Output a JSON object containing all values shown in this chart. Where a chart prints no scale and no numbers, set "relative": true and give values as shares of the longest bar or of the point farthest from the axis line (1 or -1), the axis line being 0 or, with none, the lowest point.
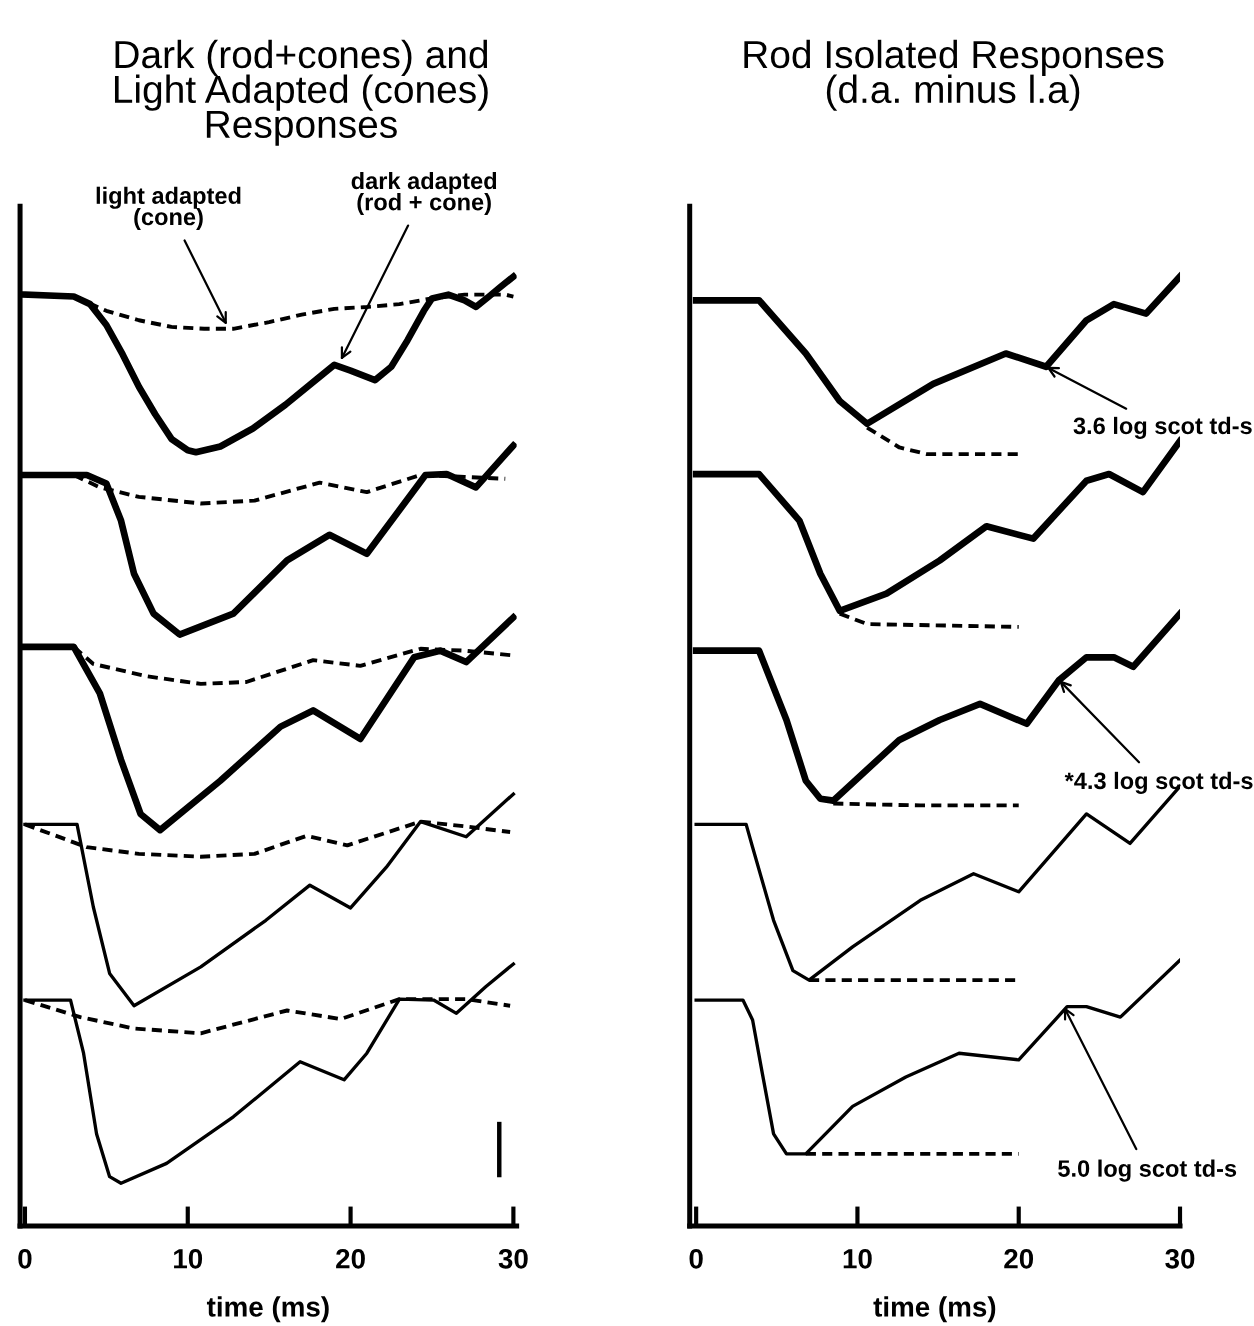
{
  "chart_data": [
    {
      "type": "line",
      "title": "Dark (rod+cones) and\nLight Adapted (cones)\nResponses",
      "xlabel": "time (ms)",
      "relative": true,
      "xlim": [
        -0.3,
        30.2
      ],
      "xticks": [
        0,
        10,
        20,
        30
      ],
      "grid": false,
      "legend": false,
      "marker": "none",
      "annotations": [
        {
          "text": "light adapted\n(cone)",
          "x": 12.4,
          "y": 0.949
        },
        {
          "text": "dark adapted\n(rod + cone)",
          "x": 19.4,
          "y": 0.912
        }
      ],
      "series": [
        {
          "color": "#000000",
          "line_style": "solid",
          "x": [
            0,
            3,
            4,
            5,
            6,
            7,
            8,
            9,
            10,
            10.5,
            12,
            14,
            16,
            18,
            19,
            20,
            21.5,
            22.5,
            23.5,
            24.5,
            25,
            26,
            27,
            27.7,
            28.5,
            29.2,
            30
          ],
          "values": [
            0.981,
            0.979,
            0.971,
            0.949,
            0.918,
            0.884,
            0.855,
            0.829,
            0.817,
            0.815,
            0.821,
            0.84,
            0.865,
            0.893,
            0.907,
            0.901,
            0.891,
            0.905,
            0.933,
            0.964,
            0.977,
            0.981,
            0.975,
            0.968,
            0.979,
            0.989,
            1
          ]
        },
        {
          "color": "#000000",
          "line_style": "dashed",
          "x": [
            0,
            3,
            5,
            7,
            9,
            11,
            12.8,
            15,
            17,
            19,
            21,
            23,
            25,
            27,
            29.5,
            30
          ],
          "values": [
            0.981,
            0.979,
            0.964,
            0.954,
            0.947,
            0.945,
            0.945,
            0.952,
            0.96,
            0.966,
            0.968,
            0.971,
            0.977,
            0.981,
            0.981,
            0.979
          ]
        },
        {
          "color": "#000000",
          "line_style": "solid",
          "x": [
            0,
            3.8,
            5,
            5.9,
            6.7,
            7.9,
            9.5,
            12.8,
            16.1,
            18.7,
            21,
            24.6,
            25.9,
            27.7,
            30
          ],
          "values": [
            0.791,
            0.791,
            0.782,
            0.743,
            0.687,
            0.645,
            0.623,
            0.645,
            0.701,
            0.728,
            0.708,
            0.791,
            0.792,
            0.778,
            0.822
          ]
        },
        {
          "color": "#000000",
          "line_style": "dashed",
          "x": [
            0,
            3,
            4.6,
            7,
            10.8,
            14.1,
            18.1,
            21,
            24.3,
            27,
            29.5
          ],
          "values": [
            0.791,
            0.791,
            0.778,
            0.768,
            0.761,
            0.764,
            0.783,
            0.773,
            0.791,
            0.789,
            0.787
          ]
        },
        {
          "color": "#000000",
          "line_style": "solid",
          "x": [
            0,
            3,
            4.6,
            5.9,
            7.1,
            8.3,
            12,
            15.7,
            17.7,
            20.6,
            23.9,
            25.5,
            27.1,
            30
          ],
          "values": [
            0.61,
            0.61,
            0.561,
            0.491,
            0.434,
            0.417,
            0.469,
            0.526,
            0.543,
            0.513,
            0.599,
            0.606,
            0.594,
            0.641
          ]
        },
        {
          "color": "#000000",
          "line_style": "dashed",
          "x": [
            0,
            3,
            4.2,
            7.5,
            10.8,
            13.6,
            17.7,
            20.6,
            24.3,
            27,
            30
          ],
          "values": [
            0.61,
            0.61,
            0.592,
            0.579,
            0.571,
            0.573,
            0.596,
            0.59,
            0.608,
            0.606,
            0.601
          ]
        },
        {
          "color": "#000000",
          "line_style": "solid",
          "x": [
            0,
            3.2,
            4.2,
            5.2,
            6.7,
            10.8,
            14.8,
            17.5,
            20,
            22.2,
            24.3,
            27.1,
            30
          ],
          "values": [
            0.423,
            0.423,
            0.336,
            0.266,
            0.232,
            0.273,
            0.322,
            0.359,
            0.335,
            0.378,
            0.426,
            0.41,
            0.455
          ]
        },
        {
          "color": "#000000",
          "line_style": "dashed",
          "x": [
            0,
            3.8,
            7,
            10.8,
            14.1,
            17.3,
            19.8,
            24.3,
            27,
            29.8
          ],
          "values": [
            0.423,
            0.399,
            0.392,
            0.389,
            0.392,
            0.411,
            0.401,
            0.426,
            0.421,
            0.415
          ]
        },
        {
          "color": "#000000",
          "line_style": "solid",
          "x": [
            0,
            2.8,
            3.6,
            4.4,
            5.2,
            5.9,
            8.7,
            12.8,
            16.9,
            19.6,
            21,
            23,
            25.1,
            26.5,
            28.3,
            30
          ],
          "values": [
            0.238,
            0.238,
            0.182,
            0.097,
            0.052,
            0.045,
            0.066,
            0.115,
            0.173,
            0.154,
            0.182,
            0.239,
            0.238,
            0.224,
            0.252,
            0.276
          ]
        },
        {
          "color": "#000000",
          "line_style": "dashed",
          "x": [
            0,
            3.4,
            6.7,
            10.8,
            16.1,
            19.4,
            23,
            27.1,
            29.8
          ],
          "values": [
            0.238,
            0.22,
            0.208,
            0.203,
            0.227,
            0.218,
            0.239,
            0.239,
            0.232
          ]
        }
      ]
    },
    {
      "type": "line",
      "title": "Rod Isolated Responses\n(d.a. minus l.a)",
      "xlabel": "time (ms)",
      "relative": true,
      "xlim": [
        -0.4,
        30
      ],
      "xticks": [
        0,
        10,
        20,
        30
      ],
      "grid": false,
      "legend": false,
      "marker": "none",
      "annotations": [
        {
          "text": "3.6 log scot td-s",
          "x": 21.7,
          "y": 0.905
        },
        {
          "text": "*4.3 log scot td-s",
          "x": 22.5,
          "y": 0.575
        },
        {
          "text": "5.0 log scot td-s",
          "x": 22.8,
          "y": 0.231
        }
      ],
      "series": [
        {
          "color": "#000000",
          "line_style": "solid",
          "x": [
            0,
            3.9,
            6.8,
            8.9,
            10.6,
            14.7,
            19.2,
            21.7,
            24.2,
            25.9,
            27.9,
            30
          ],
          "values": [
            0.975,
            0.975,
            0.919,
            0.869,
            0.845,
            0.887,
            0.919,
            0.905,
            0.954,
            0.971,
            0.961,
            1
          ]
        },
        {
          "color": "#000000",
          "line_style": "dashed",
          "x": [
            10.6,
            12.6,
            14.3,
            20
          ],
          "values": [
            0.841,
            0.82,
            0.813,
            0.813
          ]
        },
        {
          "color": "#000000",
          "line_style": "solid",
          "x": [
            0,
            3.9,
            6.4,
            7.7,
            8.9,
            11.8,
            15.1,
            18,
            20.9,
            24.2,
            25.6,
            27.7,
            30
          ],
          "values": [
            0.792,
            0.792,
            0.743,
            0.687,
            0.648,
            0.666,
            0.701,
            0.737,
            0.724,
            0.785,
            0.792,
            0.773,
            0.827
          ]
        },
        {
          "color": "#000000",
          "line_style": "dashed",
          "x": [
            8.9,
            10.6,
            20
          ],
          "values": [
            0.645,
            0.634,
            0.631
          ]
        },
        {
          "color": "#000000",
          "line_style": "solid",
          "x": [
            0,
            3.9,
            5.6,
            6.8,
            7.7,
            8.5,
            12.6,
            15.1,
            17.6,
            20.5,
            22.5,
            24.2,
            25.9,
            27.1,
            30
          ],
          "values": [
            0.606,
            0.606,
            0.533,
            0.469,
            0.45,
            0.448,
            0.512,
            0.533,
            0.55,
            0.529,
            0.575,
            0.599,
            0.599,
            0.589,
            0.645
          ]
        },
        {
          "color": "#000000",
          "line_style": "dashed",
          "x": [
            8.5,
            13.9,
            20
          ],
          "values": [
            0.445,
            0.443,
            0.443
          ]
        },
        {
          "color": "#000000",
          "line_style": "solid",
          "x": [
            0,
            3.1,
            3.5,
            4.8,
            6,
            7,
            9.7,
            13.9,
            17.2,
            20,
            24.2,
            26.9,
            30
          ],
          "values": [
            0.423,
            0.423,
            0.399,
            0.322,
            0.269,
            0.259,
            0.294,
            0.343,
            0.371,
            0.352,
            0.434,
            0.403,
            0.463
          ]
        },
        {
          "color": "#000000",
          "line_style": "dashed",
          "x": [
            7,
            13.5,
            20
          ],
          "values": [
            0.259,
            0.259,
            0.259
          ]
        },
        {
          "color": "#000000",
          "line_style": "solid",
          "x": [
            0,
            2.9,
            3.5,
            4.1,
            4.8,
            5.6,
            6.8,
            9.7,
            13,
            16.3,
            18.4,
            20,
            23,
            24.2,
            26.3,
            30
          ],
          "values": [
            0.238,
            0.238,
            0.217,
            0.161,
            0.097,
            0.076,
            0.076,
            0.126,
            0.157,
            0.182,
            0.178,
            0.175,
            0.231,
            0.231,
            0.22,
            0.28
          ]
        },
        {
          "color": "#000000",
          "line_style": "dashed",
          "x": [
            6.8,
            13.5,
            20
          ],
          "values": [
            0.076,
            0.076,
            0.076
          ]
        }
      ]
    }
  ]
}
